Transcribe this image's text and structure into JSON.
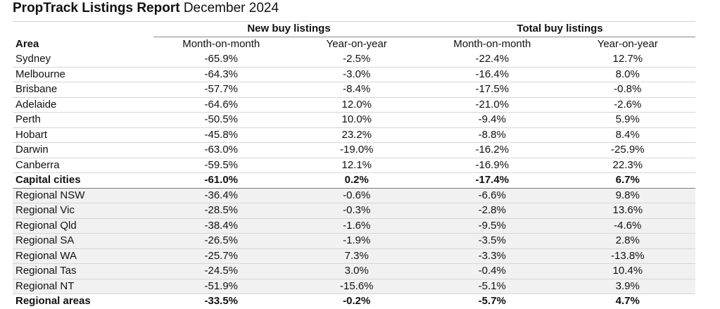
{
  "title": {
    "bold": "PropTrack Listings Report",
    "regular": "December 2024"
  },
  "headers": {
    "new_group": "New buy listings",
    "total_group": "Total  buy listings",
    "area": "Area",
    "mom": "Month-on-month",
    "yoy": "Year-on-year"
  },
  "rows": [
    {
      "area": "Sydney",
      "new_mom": "-65.9%",
      "new_yoy": "-2.5%",
      "total_mom": "-22.4%",
      "total_yoy": "12.7%"
    },
    {
      "area": "Melbourne",
      "new_mom": "-64.3%",
      "new_yoy": "-3.0%",
      "total_mom": "-16.4%",
      "total_yoy": "8.0%"
    },
    {
      "area": "Brisbane",
      "new_mom": "-57.7%",
      "new_yoy": "-8.4%",
      "total_mom": "-17.5%",
      "total_yoy": "-0.8%"
    },
    {
      "area": "Adelaide",
      "new_mom": "-64.6%",
      "new_yoy": "12.0%",
      "total_mom": "-21.0%",
      "total_yoy": "-2.6%"
    },
    {
      "area": "Perth",
      "new_mom": "-50.5%",
      "new_yoy": "10.0%",
      "total_mom": "-9.4%",
      "total_yoy": "5.9%"
    },
    {
      "area": "Hobart",
      "new_mom": "-45.8%",
      "new_yoy": "23.2%",
      "total_mom": "-8.8%",
      "total_yoy": "8.4%"
    },
    {
      "area": "Darwin",
      "new_mom": "-63.0%",
      "new_yoy": "-19.0%",
      "total_mom": "-16.2%",
      "total_yoy": "-25.9%"
    },
    {
      "area": "Canberra",
      "new_mom": "-59.5%",
      "new_yoy": "12.1%",
      "total_mom": "-16.9%",
      "total_yoy": "22.3%"
    },
    {
      "area": "Capital cities",
      "new_mom": "-61.0%",
      "new_yoy": "0.2%",
      "total_mom": "-17.4%",
      "total_yoy": "6.7%"
    },
    {
      "area": "Regional NSW",
      "new_mom": "-36.4%",
      "new_yoy": "-0.6%",
      "total_mom": "-6.6%",
      "total_yoy": "9.8%"
    },
    {
      "area": "Regional Vic",
      "new_mom": "-28.5%",
      "new_yoy": "-0.3%",
      "total_mom": "-2.8%",
      "total_yoy": "13.6%"
    },
    {
      "area": "Regional Qld",
      "new_mom": "-38.4%",
      "new_yoy": "-1.6%",
      "total_mom": "-9.5%",
      "total_yoy": "-4.6%"
    },
    {
      "area": "Regional SA",
      "new_mom": "-26.5%",
      "new_yoy": "-1.9%",
      "total_mom": "-3.5%",
      "total_yoy": "2.8%"
    },
    {
      "area": "Regional WA",
      "new_mom": "-25.7%",
      "new_yoy": "7.3%",
      "total_mom": "-3.3%",
      "total_yoy": "-13.8%"
    },
    {
      "area": "Regional Tas",
      "new_mom": "-24.5%",
      "new_yoy": "3.0%",
      "total_mom": "-0.4%",
      "total_yoy": "10.4%"
    },
    {
      "area": "Regional NT",
      "new_mom": "-51.9%",
      "new_yoy": "-15.6%",
      "total_mom": "-5.1%",
      "total_yoy": "3.9%"
    },
    {
      "area": "Regional areas",
      "new_mom": "-33.5%",
      "new_yoy": "-0.2%",
      "total_mom": "-5.7%",
      "total_yoy": "4.7%"
    }
  ]
}
